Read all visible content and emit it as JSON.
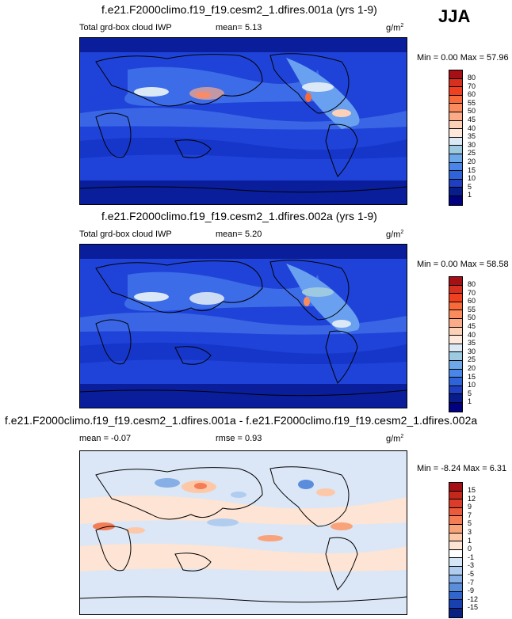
{
  "season": "JJA",
  "panels": [
    {
      "title": "f.e21.F2000climo.f19_f19.cesm2_1.dfires.001a (yrs 1-9)",
      "left_label": "Total grd-box cloud IWP",
      "center_label": "mean=  5.13",
      "units": "g/m",
      "units_sup": "2",
      "minmax": "Min =  0.00 Max =  57.96",
      "colorbar_labels": [
        "80",
        "70",
        "60",
        "55",
        "50",
        "45",
        "40",
        "35",
        "30",
        "25",
        "20",
        "15",
        "10",
        "5",
        "1"
      ],
      "colors": [
        "#a50f15",
        "#d7301f",
        "#f0401f",
        "#f86a3a",
        "#fb8a5c",
        "#fcab88",
        "#fdd0b8",
        "#fee8dc",
        "#dbe9f6",
        "#9ecae1",
        "#6fa8e8",
        "#4a86e8",
        "#2f63d8",
        "#1f3fc0",
        "#081c8c",
        "#000080"
      ]
    },
    {
      "title": "f.e21.F2000climo.f19_f19.cesm2_1.dfires.002a (yrs 1-9)",
      "left_label": "Total grd-box cloud IWP",
      "center_label": "mean=  5.20",
      "units": "g/m",
      "units_sup": "2",
      "minmax": "Min =  0.00 Max =  58.58",
      "colorbar_labels": [
        "80",
        "70",
        "60",
        "55",
        "50",
        "45",
        "40",
        "35",
        "30",
        "25",
        "20",
        "15",
        "10",
        "5",
        "1"
      ],
      "colors": [
        "#a50f15",
        "#d7301f",
        "#f0401f",
        "#f86a3a",
        "#fb8a5c",
        "#fcab88",
        "#fdd0b8",
        "#fee8dc",
        "#dbe9f6",
        "#9ecae1",
        "#6fa8e8",
        "#4a86e8",
        "#2f63d8",
        "#1f3fc0",
        "#081c8c",
        "#000080"
      ]
    },
    {
      "title": "f.e21.F2000climo.f19_f19.cesm2_1.dfires.001a - f.e21.F2000climo.f19_f19.cesm2_1.dfires.002a",
      "left_label": "mean = -0.07",
      "center_label": "rmse =  0.93",
      "units": "g/m",
      "units_sup": "2",
      "minmax": "Min = -8.24 Max =  6.31",
      "colorbar_labels": [
        "15",
        "12",
        "9",
        "7",
        "5",
        "3",
        "1",
        "0",
        "-1",
        "-3",
        "-5",
        "-7",
        "-9",
        "-12",
        "-15"
      ],
      "colors": [
        "#a50f15",
        "#c2281c",
        "#dc3c2a",
        "#ec5a3c",
        "#f47d56",
        "#f9a37a",
        "#fcc8a8",
        "#fde4d4",
        "#ffffff",
        "#d6e6f7",
        "#b0cdef",
        "#86afe6",
        "#5a8ddb",
        "#3266cc",
        "#1840b0",
        "#0a2080"
      ]
    }
  ]
}
